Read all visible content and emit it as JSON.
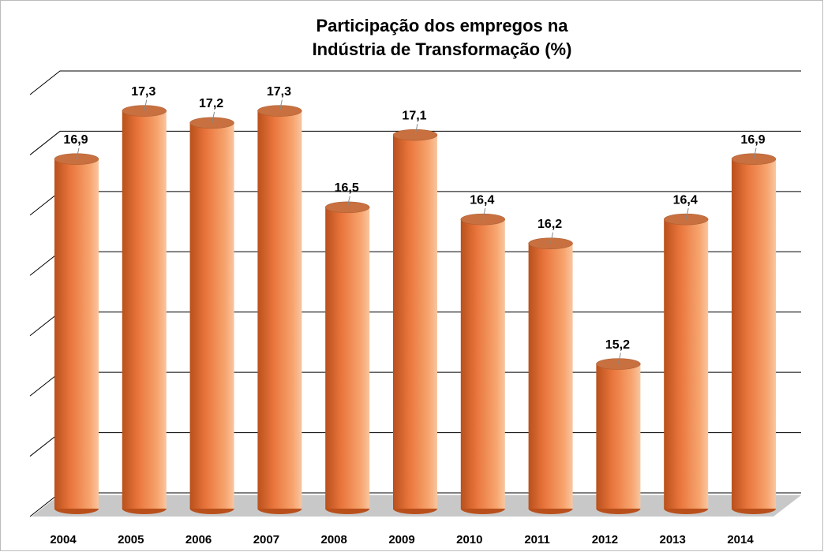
{
  "chart_data": {
    "type": "bar",
    "title": [
      "Participação dos empregos na",
      "Indústria de Transformação (%)"
    ],
    "categories": [
      "2004",
      "2005",
      "2006",
      "2007",
      "2008",
      "2009",
      "2010",
      "2011",
      "2012",
      "2013",
      "2014"
    ],
    "values": [
      16.9,
      17.3,
      17.2,
      17.3,
      16.5,
      17.1,
      16.4,
      16.2,
      15.2,
      16.4,
      16.9
    ],
    "value_labels": [
      "16,9",
      "17,3",
      "17,2",
      "17,3",
      "16,5",
      "17,1",
      "16,4",
      "16,2",
      "15,2",
      "16,4",
      "16,9"
    ],
    "color": "#e8743b",
    "ylim": [
      14,
      17.5
    ],
    "yticks": [
      14,
      14.5,
      15,
      15.5,
      16,
      16.5,
      17,
      17.5
    ],
    "grid": true
  }
}
